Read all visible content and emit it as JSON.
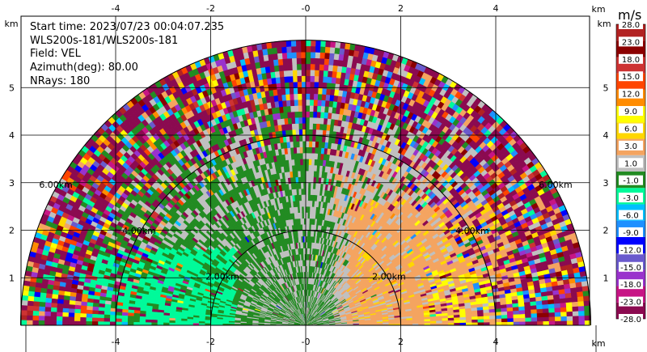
{
  "info": {
    "start_time": "Start time: 2023/07/23 00:04:07.235",
    "radar": "WLS200s-181/WLS200s-181",
    "field": "Field: VEL",
    "azimuth": "Azimuth(deg): 80.00",
    "nrays": "NRays: 180"
  },
  "colorbar": {
    "unit": "m/s",
    "levels": [
      "-28.0",
      "-23.0",
      "-18.0",
      "-15.0",
      "-12.0",
      "-9.0",
      "-6.0",
      "-3.0",
      "-1.0",
      "1.0",
      "3.0",
      "6.0",
      "9.0",
      "12.0",
      "15.0",
      "18.0",
      "23.0",
      "28.0"
    ],
    "colors": [
      "#8b0a50",
      "#c71585",
      "#9932cc",
      "#6a5acd",
      "#0000ff",
      "#1e90ff",
      "#00bfff",
      "#00fa9a",
      "#228b22",
      "#c0c0c0",
      "#f4a460",
      "#ffd700",
      "#ffff00",
      "#ff8c00",
      "#ff4500",
      "#cd3333",
      "#8b0000",
      "#b22222"
    ]
  },
  "chart_data": {
    "type": "heatmap",
    "title": "",
    "xlabel": "km",
    "ylabel": "km",
    "xlim": [
      -6,
      6
    ],
    "ylim": [
      0,
      6
    ],
    "x_ticks": [
      "-4",
      "-2",
      "-0",
      "2",
      "4"
    ],
    "y_ticks": [
      "1",
      "2",
      "3",
      "4",
      "5"
    ],
    "range_rings": [
      {
        "range_km": 2.0,
        "label": "2.00km"
      },
      {
        "range_km": 4.0,
        "label": "4.00km"
      },
      {
        "range_km": 6.0,
        "label": "6.00km"
      }
    ],
    "max_range_km": 6.0,
    "field": "VEL",
    "units": "m/s",
    "azimuth_deg": 80.0,
    "nrays": 180
  }
}
